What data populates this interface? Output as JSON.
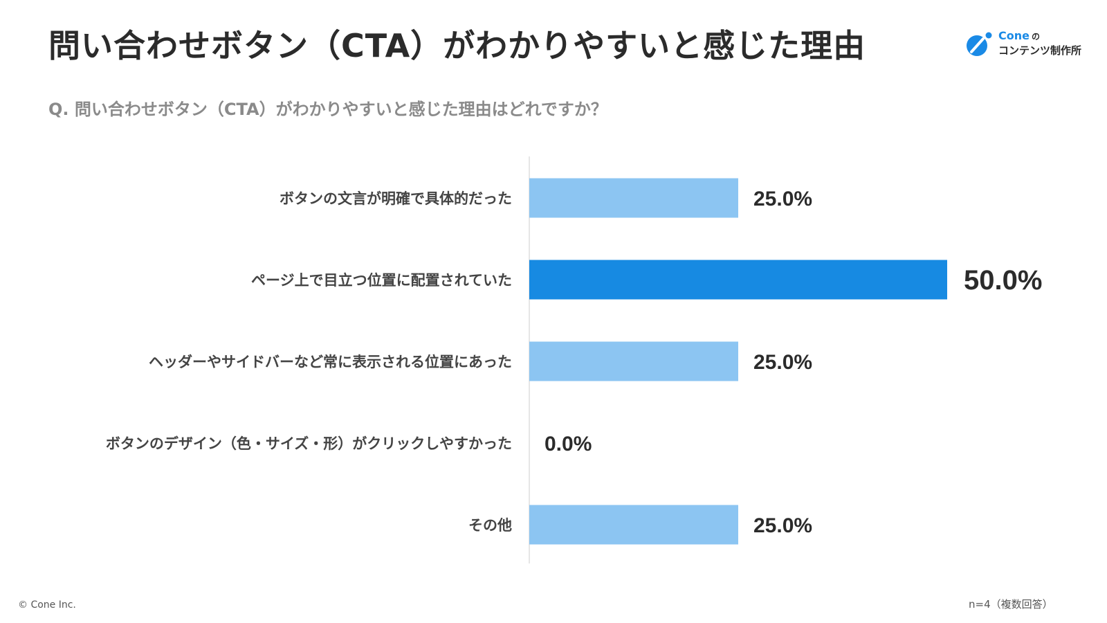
{
  "header": {
    "title": "問い合わせボタン（CTA）がわかりやすいと感じた理由",
    "question": "Q. 問い合わせボタン（CTA）がわかりやすいと感じた理由はどれですか？"
  },
  "logo": {
    "brand": "Cone",
    "particle": "の",
    "tagline": "コンテンツ制作所"
  },
  "footer": {
    "copyright": "© Cone Inc.",
    "note": "n=4（複数回答）"
  },
  "colors": {
    "bar_default": "#8cc5f2",
    "bar_highlight": "#178ae2",
    "axis": "#dddddd",
    "label": "#444444",
    "value": "#2b2b2b"
  },
  "chart_data": {
    "type": "bar",
    "orientation": "horizontal",
    "categories": [
      "ボタンの文言が明確で具体的だった",
      "ページ上で目立つ位置に配置されていた",
      "ヘッダーやサイドバーなど常に表示される位置にあった",
      "ボタンのデザイン（色・サイズ・形）がクリックしやすかった",
      "その他"
    ],
    "values": [
      25.0,
      50.0,
      25.0,
      0.0,
      25.0
    ],
    "value_labels": [
      "25.0%",
      "50.0%",
      "25.0%",
      "0.0%",
      "25.0%"
    ],
    "highlight_index": 1,
    "xlim": [
      0,
      50
    ],
    "grid": false
  }
}
